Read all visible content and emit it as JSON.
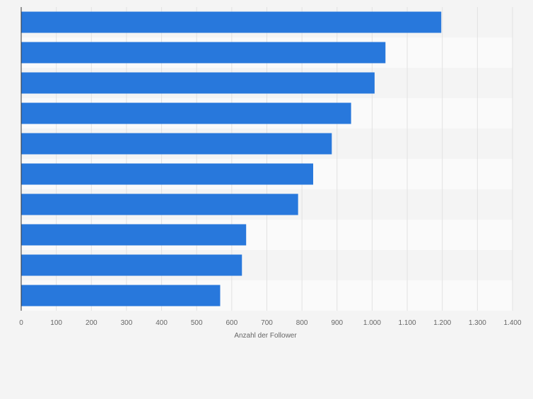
{
  "chart_data": {
    "type": "bar",
    "orientation": "horizontal",
    "categories": [
      "",
      "",
      "",
      "",
      "",
      "",
      "",
      "",
      "",
      ""
    ],
    "values": [
      1197,
      1038,
      1007,
      940,
      885,
      832,
      789,
      641,
      629,
      567
    ],
    "title": "",
    "xlabel": "Anzahl der Follower",
    "ylabel": "",
    "xlim": [
      0,
      1400
    ],
    "xticks": [
      0,
      100,
      200,
      300,
      400,
      500,
      600,
      700,
      800,
      900,
      1000,
      1100,
      1200,
      1300,
      1400
    ],
    "xtick_labels": [
      "0",
      "100",
      "200",
      "300",
      "400",
      "500",
      "600",
      "700",
      "800",
      "900",
      "1.000",
      "1.100",
      "1.200",
      "1.300",
      "1.400"
    ],
    "grid": true,
    "legend": "none",
    "colors": {
      "bar": "#2878dc",
      "band_light": "#fafafa",
      "band_dark": "#f4f4f4",
      "grid": "#e2e2e2",
      "axis": "#333333",
      "tick_text": "#666666"
    }
  }
}
